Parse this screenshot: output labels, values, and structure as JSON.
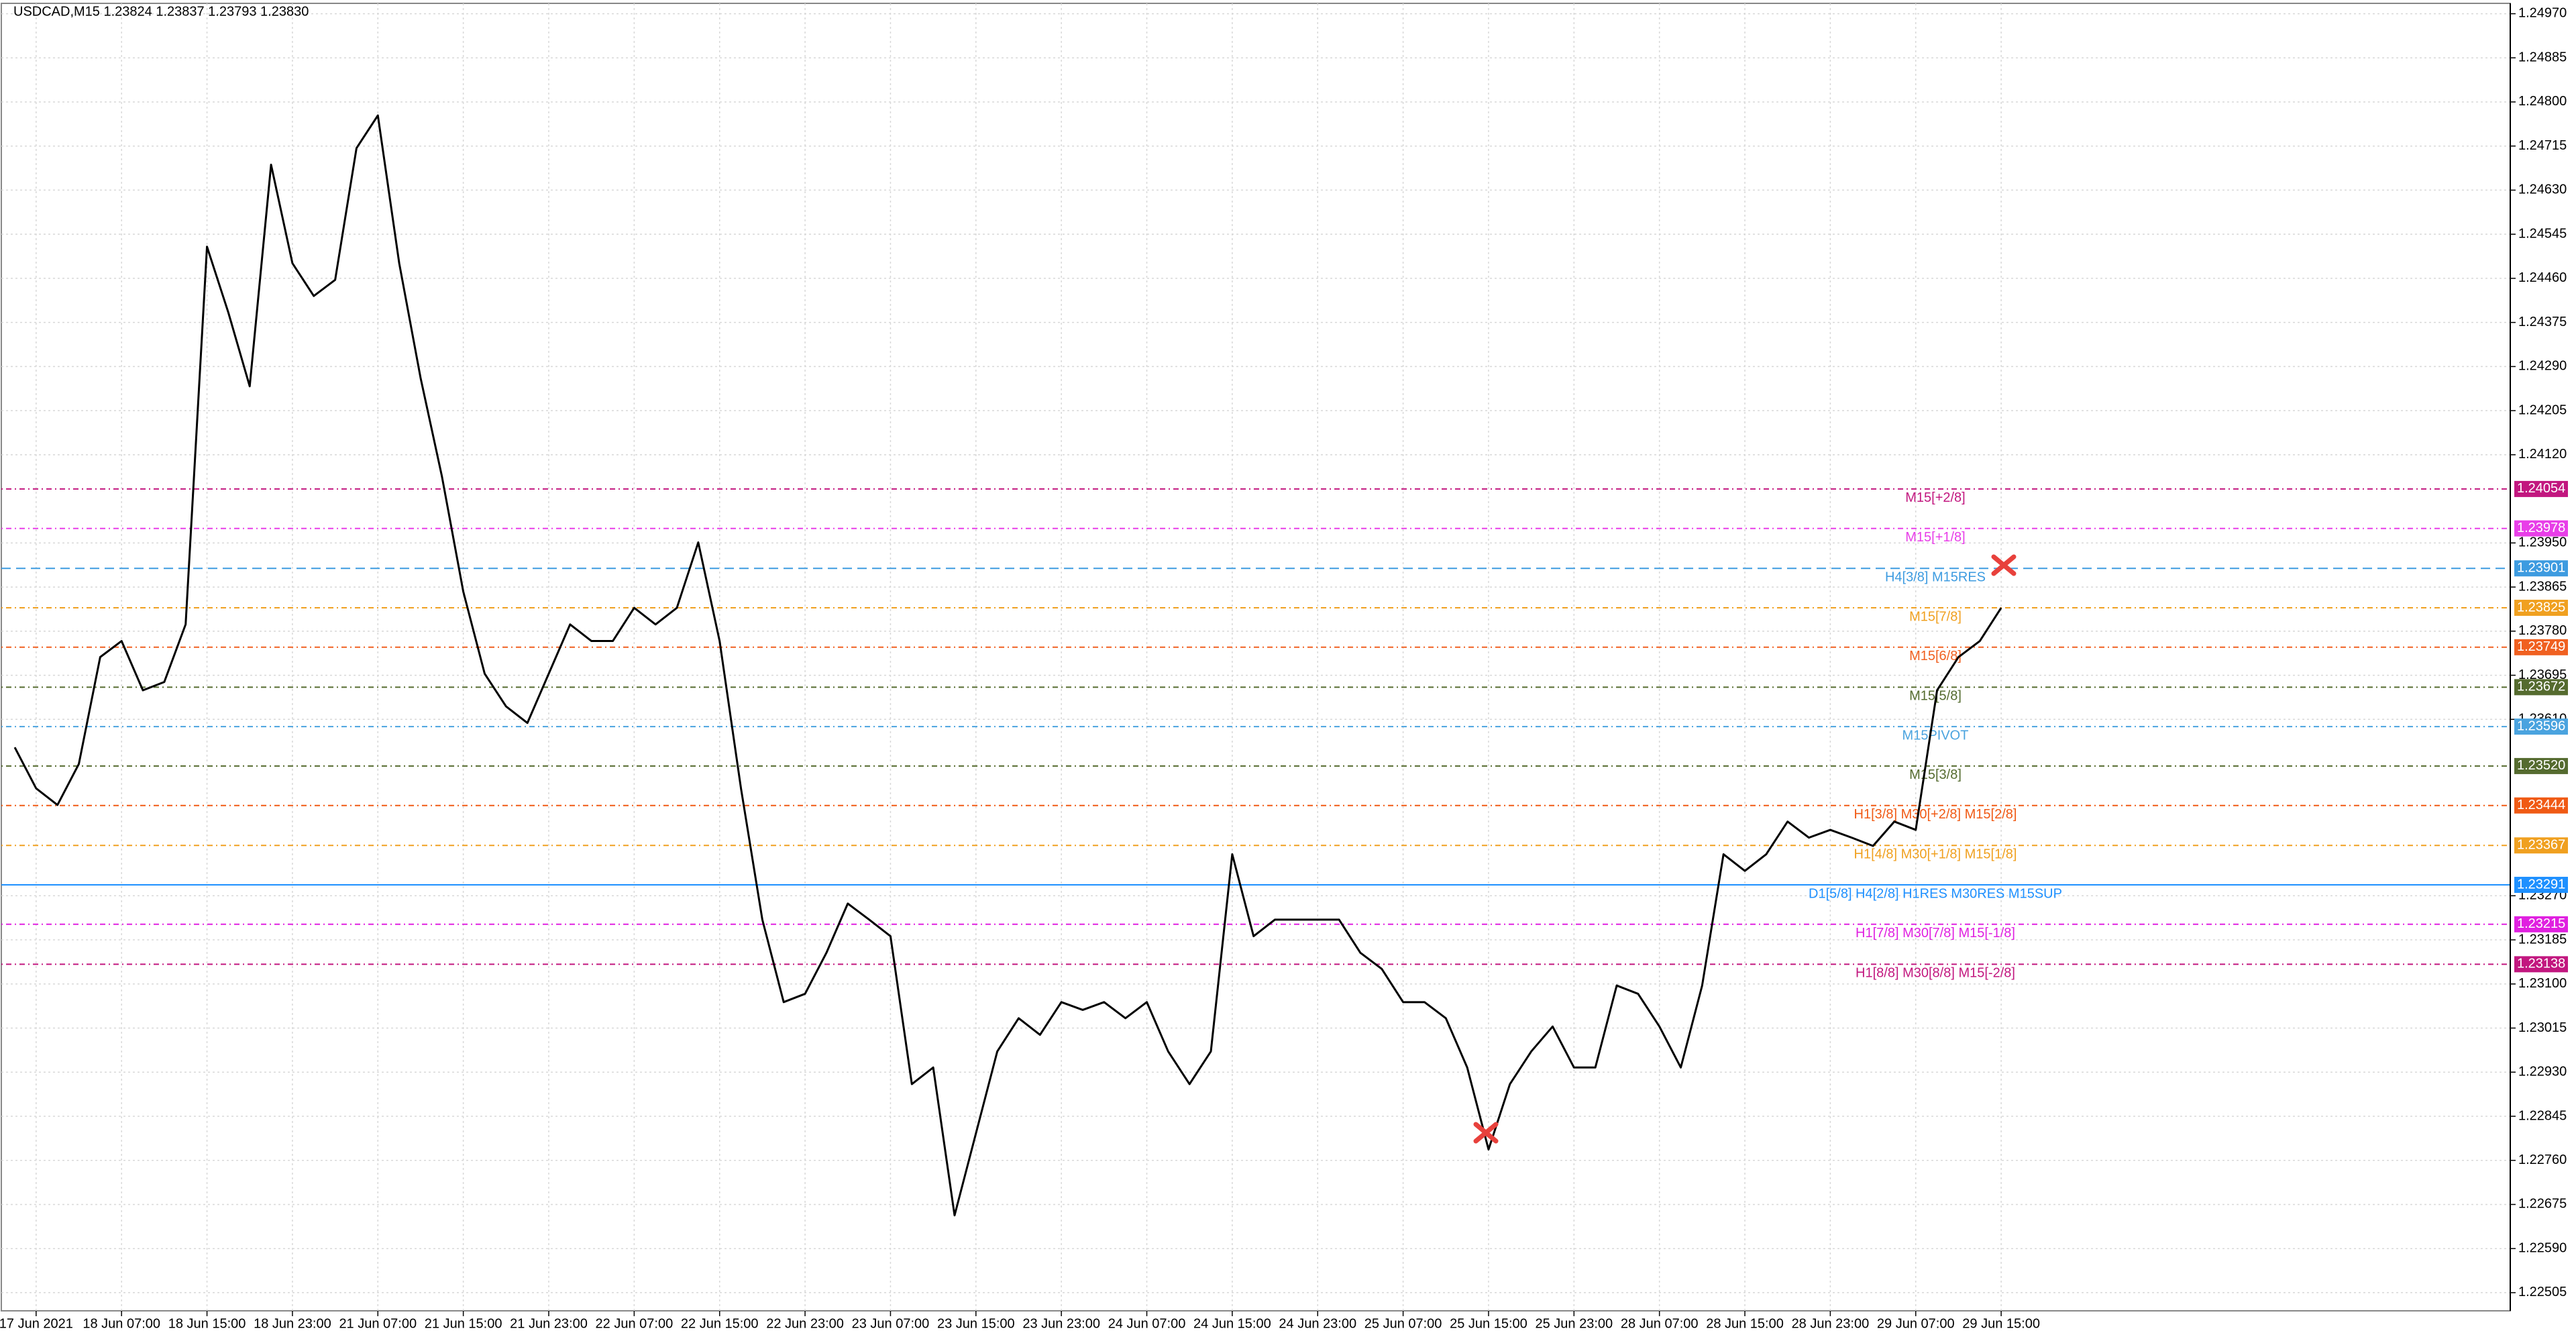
{
  "chart_data": {
    "type": "line",
    "title": "USDCAD,M15  1.23824 1.23837 1.23793 1.23830",
    "categories": [
      null,
      "17 Jun 2021",
      null,
      null,
      null,
      "18 Jun 07:00",
      null,
      null,
      null,
      "18 Jun 15:00",
      null,
      null,
      null,
      "18 Jun 23:00",
      null,
      null,
      null,
      "21 Jun 07:00",
      null,
      null,
      null,
      "21 Jun 15:00",
      null,
      null,
      null,
      "21 Jun 23:00",
      null,
      null,
      null,
      "22 Jun 07:00",
      null,
      null,
      null,
      "22 Jun 15:00",
      null,
      null,
      null,
      "22 Jun 23:00",
      null,
      null,
      null,
      "23 Jun 07:00",
      null,
      null,
      null,
      "23 Jun 15:00",
      null,
      null,
      null,
      "23 Jun 23:00",
      null,
      null,
      null,
      "24 Jun 07:00",
      null,
      null,
      null,
      "24 Jun 15:00",
      null,
      null,
      null,
      "24 Jun 23:00",
      null,
      null,
      null,
      "25 Jun 07:00",
      null,
      null,
      null,
      "25 Jun 15:00",
      null,
      null,
      null,
      "25 Jun 23:00",
      null,
      null,
      null,
      "28 Jun 07:00",
      null,
      null,
      null,
      "28 Jun 15:00",
      null,
      null,
      null,
      "28 Jun 23:00",
      null,
      null,
      null,
      "29 Jun 07:00",
      null,
      null,
      null,
      "29 Jun 15:00"
    ],
    "series": [
      {
        "color": "#000000",
        "values": [
          1.23556,
          1.23477,
          1.23445,
          1.23524,
          1.2373,
          1.23761,
          1.23666,
          1.23682,
          1.23793,
          1.24521,
          1.24394,
          1.24252,
          1.24679,
          1.24489,
          1.24426,
          1.24457,
          1.24711,
          1.24774,
          1.24489,
          1.24268,
          1.24078,
          1.23856,
          1.23698,
          1.23635,
          1.23603,
          1.23698,
          1.23793,
          1.23761,
          1.23761,
          1.23825,
          1.23793,
          1.23825,
          1.23951,
          1.23761,
          1.23477,
          1.23224,
          1.23065,
          1.23081,
          1.2316,
          1.23255,
          1.23224,
          1.23192,
          1.22907,
          1.22939,
          1.22654,
          1.22812,
          1.2297,
          1.23034,
          1.23002,
          1.23065,
          1.2305,
          1.23065,
          1.23034,
          1.23065,
          1.2297,
          1.22907,
          1.2297,
          1.2335,
          1.23192,
          1.23224,
          1.23224,
          1.23224,
          1.23224,
          1.2316,
          1.23129,
          1.23065,
          1.23065,
          1.23034,
          1.22939,
          1.22781,
          1.22907,
          1.2297,
          1.23018,
          1.22939,
          1.22939,
          1.23097,
          1.23081,
          1.23018,
          1.22939,
          1.23097,
          1.2335,
          1.23318,
          1.2335,
          1.23413,
          1.23382,
          1.23397,
          1.23382,
          1.23366,
          1.23413,
          1.23397,
          1.23666,
          1.2373,
          1.23761,
          1.23825
        ]
      }
    ],
    "ylim": [
      1.2247,
      1.2499
    ],
    "yticks": [
      {
        "value": 1.2497,
        "label": "1.24970"
      },
      1.24885,
      {
        "value": 1.248,
        "label": "1.24800"
      },
      1.24715,
      {
        "value": 1.2463,
        "label": "1.24630"
      },
      1.24545,
      {
        "value": 1.2446,
        "label": "1.24460"
      },
      1.24375,
      {
        "value": 1.2429,
        "label": "1.24290"
      },
      1.24205,
      {
        "value": 1.2412,
        "label": "1.24120"
      },
      {
        "value": 1.2395,
        "label": "1.23950"
      },
      1.23865,
      {
        "value": 1.2378,
        "label": "1.23780"
      },
      1.23695,
      {
        "value": 1.2361,
        "label": "1.23610"
      },
      {
        "value": 1.2327,
        "label": "1.23270"
      },
      1.23185,
      {
        "value": 1.231,
        "label": "1.23100"
      },
      1.23015,
      {
        "value": 1.2293,
        "label": "1.22930"
      },
      1.22845,
      {
        "value": 1.2276,
        "label": "1.22760"
      },
      1.22675,
      {
        "value": 1.2259,
        "label": "1.22590"
      },
      1.22505
    ],
    "grid": true,
    "levels": [
      {
        "price": 1.24054,
        "name": "M15[+2/8]",
        "color": "#c2177f",
        "dash": "2 5 8 5"
      },
      {
        "price": 1.23978,
        "name": "M15[+1/8]",
        "color": "#e83ee8",
        "dash": "2 5 8 5"
      },
      {
        "price": 1.23901,
        "name": "H4[3/8] M15RES",
        "color": "#3d9be0",
        "dash": "14 8"
      },
      {
        "price": 1.23825,
        "name": "M15[7/8]",
        "color": "#f0a020",
        "dash": "2 5 8 5"
      },
      {
        "price": 1.23749,
        "name": "M15[6/8]",
        "color": "#f06020",
        "dash": "2 5 8 5"
      },
      {
        "price": 1.23672,
        "name": "M15[5/8]",
        "color": "#556b2f",
        "dash": "2 5 8 5"
      },
      {
        "price": 1.23596,
        "name": "M15PIVOT",
        "color": "#4aa3df",
        "dash": "2 5 8 5"
      },
      {
        "price": {
          "value": 1.2352,
          "label": "1.23520"
        },
        "name": "M15[3/8]",
        "color": "#556b2f",
        "dash": "2 5 8 5"
      },
      {
        "price": 1.23444,
        "name": "H1[3/8] M30[+2/8] M15[2/8]",
        "color": "#f05a14",
        "dash": "2 5 8 5"
      },
      {
        "price": 1.23367,
        "name": "H1[4/8] M30[+1/8] M15[1/8]",
        "color": "#f0a020",
        "dash": "2 5 8 5"
      },
      {
        "price": 1.23291,
        "name": "D1[5/8] H4[2/8] H1RES M30RES M15SUP",
        "color": "#1e90ff",
        "dash": "none"
      },
      {
        "price": 1.23215,
        "name": "H1[7/8] M30[7/8] M15[-1/8]",
        "color": "#e020e0",
        "dash": "2 5 8 5"
      },
      {
        "price": 1.23138,
        "name": "H1[8/8] M30[8/8] M15[-2/8]",
        "color": "#c2177f",
        "dash": "2 5 8 5"
      }
    ]
  }
}
